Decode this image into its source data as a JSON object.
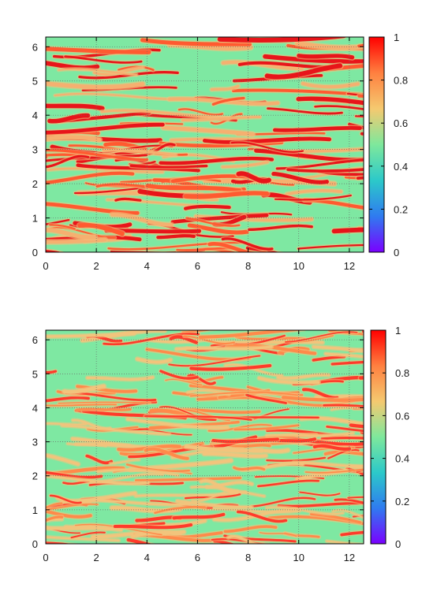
{
  "chart_data": [
    {
      "type": "heatmap",
      "title": "",
      "xlabel": "",
      "ylabel": "",
      "xlim": [
        0,
        12.566
      ],
      "ylim": [
        0,
        6.283
      ],
      "xticks": [
        0,
        2,
        4,
        6,
        8,
        10,
        12
      ],
      "yticks": [
        0,
        1,
        2,
        3,
        4,
        5,
        6
      ],
      "grid": true,
      "colorbar": {
        "range": [
          0,
          1
        ],
        "ticks": [
          "0",
          "0.2",
          "0.4",
          "0.6",
          "0.8",
          "1"
        ],
        "colors": [
          "#7a00ff",
          "#2f7bf0",
          "#2cc9c9",
          "#7ee89c",
          "#f5c970",
          "#ff8040",
          "#ff0000"
        ]
      },
      "background_value": 0.55,
      "note": "red streaks = values near 1; background ~0.5"
    },
    {
      "type": "heatmap",
      "title": "",
      "xlabel": "",
      "ylabel": "",
      "xlim": [
        0,
        12.566
      ],
      "ylim": [
        0,
        6.283
      ],
      "xticks": [
        0,
        2,
        4,
        6,
        8,
        10,
        12
      ],
      "yticks": [
        0,
        1,
        2,
        3,
        4,
        5,
        6
      ],
      "grid": true,
      "colorbar": {
        "range": [
          0,
          1
        ],
        "ticks": [
          "0",
          "0.2",
          "0.4",
          "0.6",
          "0.8",
          "1"
        ],
        "colors": [
          "#7a00ff",
          "#2f7bf0",
          "#2cc9c9",
          "#7ee89c",
          "#f5c970",
          "#ff8040",
          "#ff0000"
        ]
      },
      "background_value": 0.55,
      "note": "thinner orange/red streaks on green background"
    }
  ]
}
